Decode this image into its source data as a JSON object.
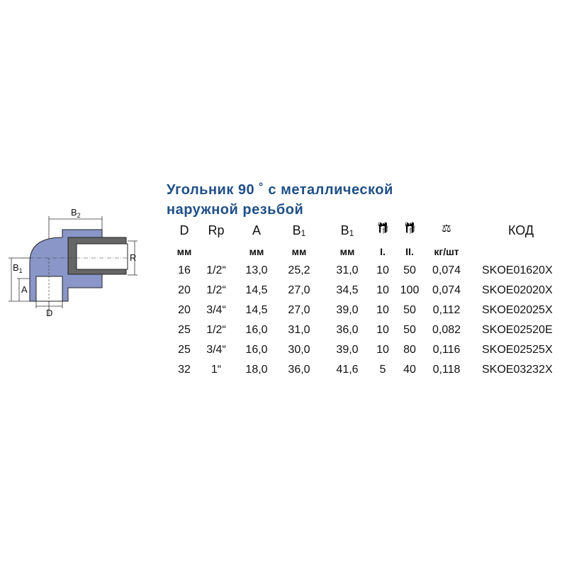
{
  "title": {
    "line1": "Угольник 90 ˚ с металлической",
    "line2": "наружной резьбой"
  },
  "diagram": {
    "labels": {
      "b2": "B",
      "b2_sub": "2",
      "b1": "B",
      "b1_sub": "1",
      "a": "A",
      "d": "D",
      "r": "R"
    },
    "body_color": "#8a96c8",
    "insert_color": "#555555"
  },
  "table": {
    "headers": [
      {
        "text": "D",
        "sub": ""
      },
      {
        "text": "Rp",
        "sub": ""
      },
      {
        "text": "A",
        "sub": ""
      },
      {
        "text": "B",
        "sub": "1"
      },
      {
        "text": "B",
        "sub": "1"
      },
      {
        "icon": "package-icon"
      },
      {
        "icon": "package-icon"
      },
      {
        "icon": "scale-icon"
      },
      {
        "text": "КОД",
        "sub": ""
      }
    ],
    "units": [
      "мм",
      "",
      "мм",
      "мм",
      "мм",
      "I.",
      "II.",
      "кг/шт",
      ""
    ],
    "rows": [
      [
        "16",
        "1/2“",
        "13,0",
        "25,2",
        "31,0",
        "10",
        "50",
        "0,074",
        "SKOE01620X"
      ],
      [
        "20",
        "1/2“",
        "14,5",
        "27,0",
        "34,5",
        "10",
        "100",
        "0,074",
        "SKOE02020X"
      ],
      [
        "20",
        "3/4“",
        "14,5",
        "27,0",
        "39,0",
        "10",
        "50",
        "0,112",
        "SKOE02025X"
      ],
      [
        "25",
        "1/2“",
        "16,0",
        "31,0",
        "36,0",
        "10",
        "50",
        "0,082",
        "SKOE02520E"
      ],
      [
        "25",
        "3/4“",
        "16,0",
        "30,0",
        "39,0",
        "10",
        "80",
        "0,116",
        "SKOE02525X"
      ],
      [
        "32",
        "1“",
        "18,0",
        "36,0",
        "41,6",
        "5",
        "40",
        "0,118",
        "SKOE03232X"
      ]
    ]
  }
}
